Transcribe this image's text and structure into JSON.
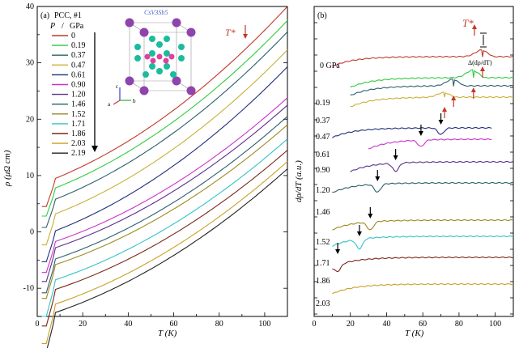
{
  "chart_data": [
    {
      "type": "line",
      "panel_label": "(a)",
      "legend_title": "PCC, #1",
      "legend_header_p": "P",
      "legend_header_slash": "/",
      "legend_header_unit": "GPa",
      "xlabel": "T (K)",
      "ylabel": "ρ (μΩ cm)",
      "xlim": [
        0,
        110
      ],
      "ylim": [
        -15,
        40
      ],
      "xticks": [
        "0",
        "20",
        "40",
        "60",
        "80",
        "100"
      ],
      "yticks": [
        "-10",
        "0",
        "10",
        "20",
        "30",
        "40"
      ],
      "annotation": "T*",
      "inset_label": "CsV3Sb5",
      "inset_axes": [
        "a",
        "b",
        "c"
      ],
      "series": [
        {
          "name": "0",
          "color": "#c0392b",
          "low": 9.5,
          "high": 40.0,
          "drop": 5.0
        },
        {
          "name": "0.19",
          "color": "#2ecc40",
          "low": 7.8,
          "high": 37.5,
          "drop": 5.0
        },
        {
          "name": "0.37",
          "color": "#2c5f6e",
          "low": 5.8,
          "high": 35.5,
          "drop": 5.0
        },
        {
          "name": "0.47",
          "color": "#c9b037",
          "low": 3.2,
          "high": 32.3,
          "drop": 5.5
        },
        {
          "name": "0.61",
          "color": "#1f2f7a",
          "low": 0.2,
          "high": 29.3,
          "drop": 5.5
        },
        {
          "name": "0.90",
          "color": "#cc33cc",
          "low": -1.7,
          "high": 23.8,
          "drop": 5.5
        },
        {
          "name": "1.20",
          "color": "#5b2f8c",
          "low": -2.8,
          "high": 22.5,
          "drop": 6.0
        },
        {
          "name": "1.46",
          "color": "#2c5f6e",
          "low": -4.8,
          "high": 20.5,
          "drop": 6.0
        },
        {
          "name": "1.52",
          "color": "#9c8a20",
          "low": -5.8,
          "high": 19.0,
          "drop": 6.0
        },
        {
          "name": "1.71",
          "color": "#33c3c9",
          "low": -8.5,
          "high": 16.5,
          "drop": 6.5
        },
        {
          "name": "1.86",
          "color": "#7a2a1a",
          "low": -10.2,
          "high": 14.5,
          "drop": 6.5
        },
        {
          "name": "2.03",
          "color": "#c9a227",
          "low": -12.8,
          "high": 12.5,
          "drop": 7.0
        },
        {
          "name": "2.19",
          "color": "#222222",
          "low": -14.3,
          "high": 11.2,
          "drop": 7.0
        }
      ]
    },
    {
      "type": "line",
      "panel_label": "(b)",
      "xlabel": "T (K)",
      "ylabel": "dρ/dT (a.u.)",
      "xlim": [
        0,
        110
      ],
      "xticks": [
        "0",
        "20",
        "40",
        "60",
        "80",
        "100"
      ],
      "annotation": "T*",
      "delta_label": "Δ(dρ/dT)",
      "series": [
        {
          "name": "0 GPa",
          "color": "#c0392b",
          "tstar": 93,
          "depth": -14,
          "offset": 0,
          "start": 10
        },
        {
          "name": "0.19",
          "color": "#2ecc40",
          "tstar": 88,
          "depth": -16,
          "offset": 1,
          "start": 20
        },
        {
          "name": "0.37",
          "color": "#2c5f6e",
          "tstar": 77,
          "depth": -14,
          "offset": 2,
          "start": 20
        },
        {
          "name": "0.47",
          "color": "#c9b037",
          "tstar": 72,
          "depth": -10,
          "offset": 3,
          "start": 20
        },
        {
          "name": "0.61",
          "color": "#1f2f7a",
          "tstar": 70,
          "depth": 8,
          "offset": 4,
          "start": 10
        },
        {
          "name": "0.90",
          "color": "#cc33cc",
          "tstar": 59,
          "depth": 8,
          "offset": 5,
          "start": 30
        },
        {
          "name": "1.20",
          "color": "#5b2f8c",
          "tstar": 45,
          "depth": 10,
          "offset": 6,
          "start": 20
        },
        {
          "name": "1.46",
          "color": "#2c5f6e",
          "tstar": 35,
          "depth": 10,
          "offset": 7,
          "start": 10
        },
        {
          "name": "1.52",
          "color": "#9c8a20",
          "tstar": 31,
          "depth": 10,
          "offset": 8,
          "start": 10
        },
        {
          "name": "1.71",
          "color": "#33c3c9",
          "tstar": 25,
          "depth": 12,
          "offset": 9,
          "start": 10
        },
        {
          "name": "1.86",
          "color": "#7a2a1a",
          "tstar": 13,
          "depth": 8,
          "offset": 10,
          "start": 10
        },
        {
          "name": "2.03",
          "color": "#c9a227",
          "tstar": 10,
          "depth": 0,
          "offset": 11,
          "start": 10
        }
      ]
    }
  ]
}
